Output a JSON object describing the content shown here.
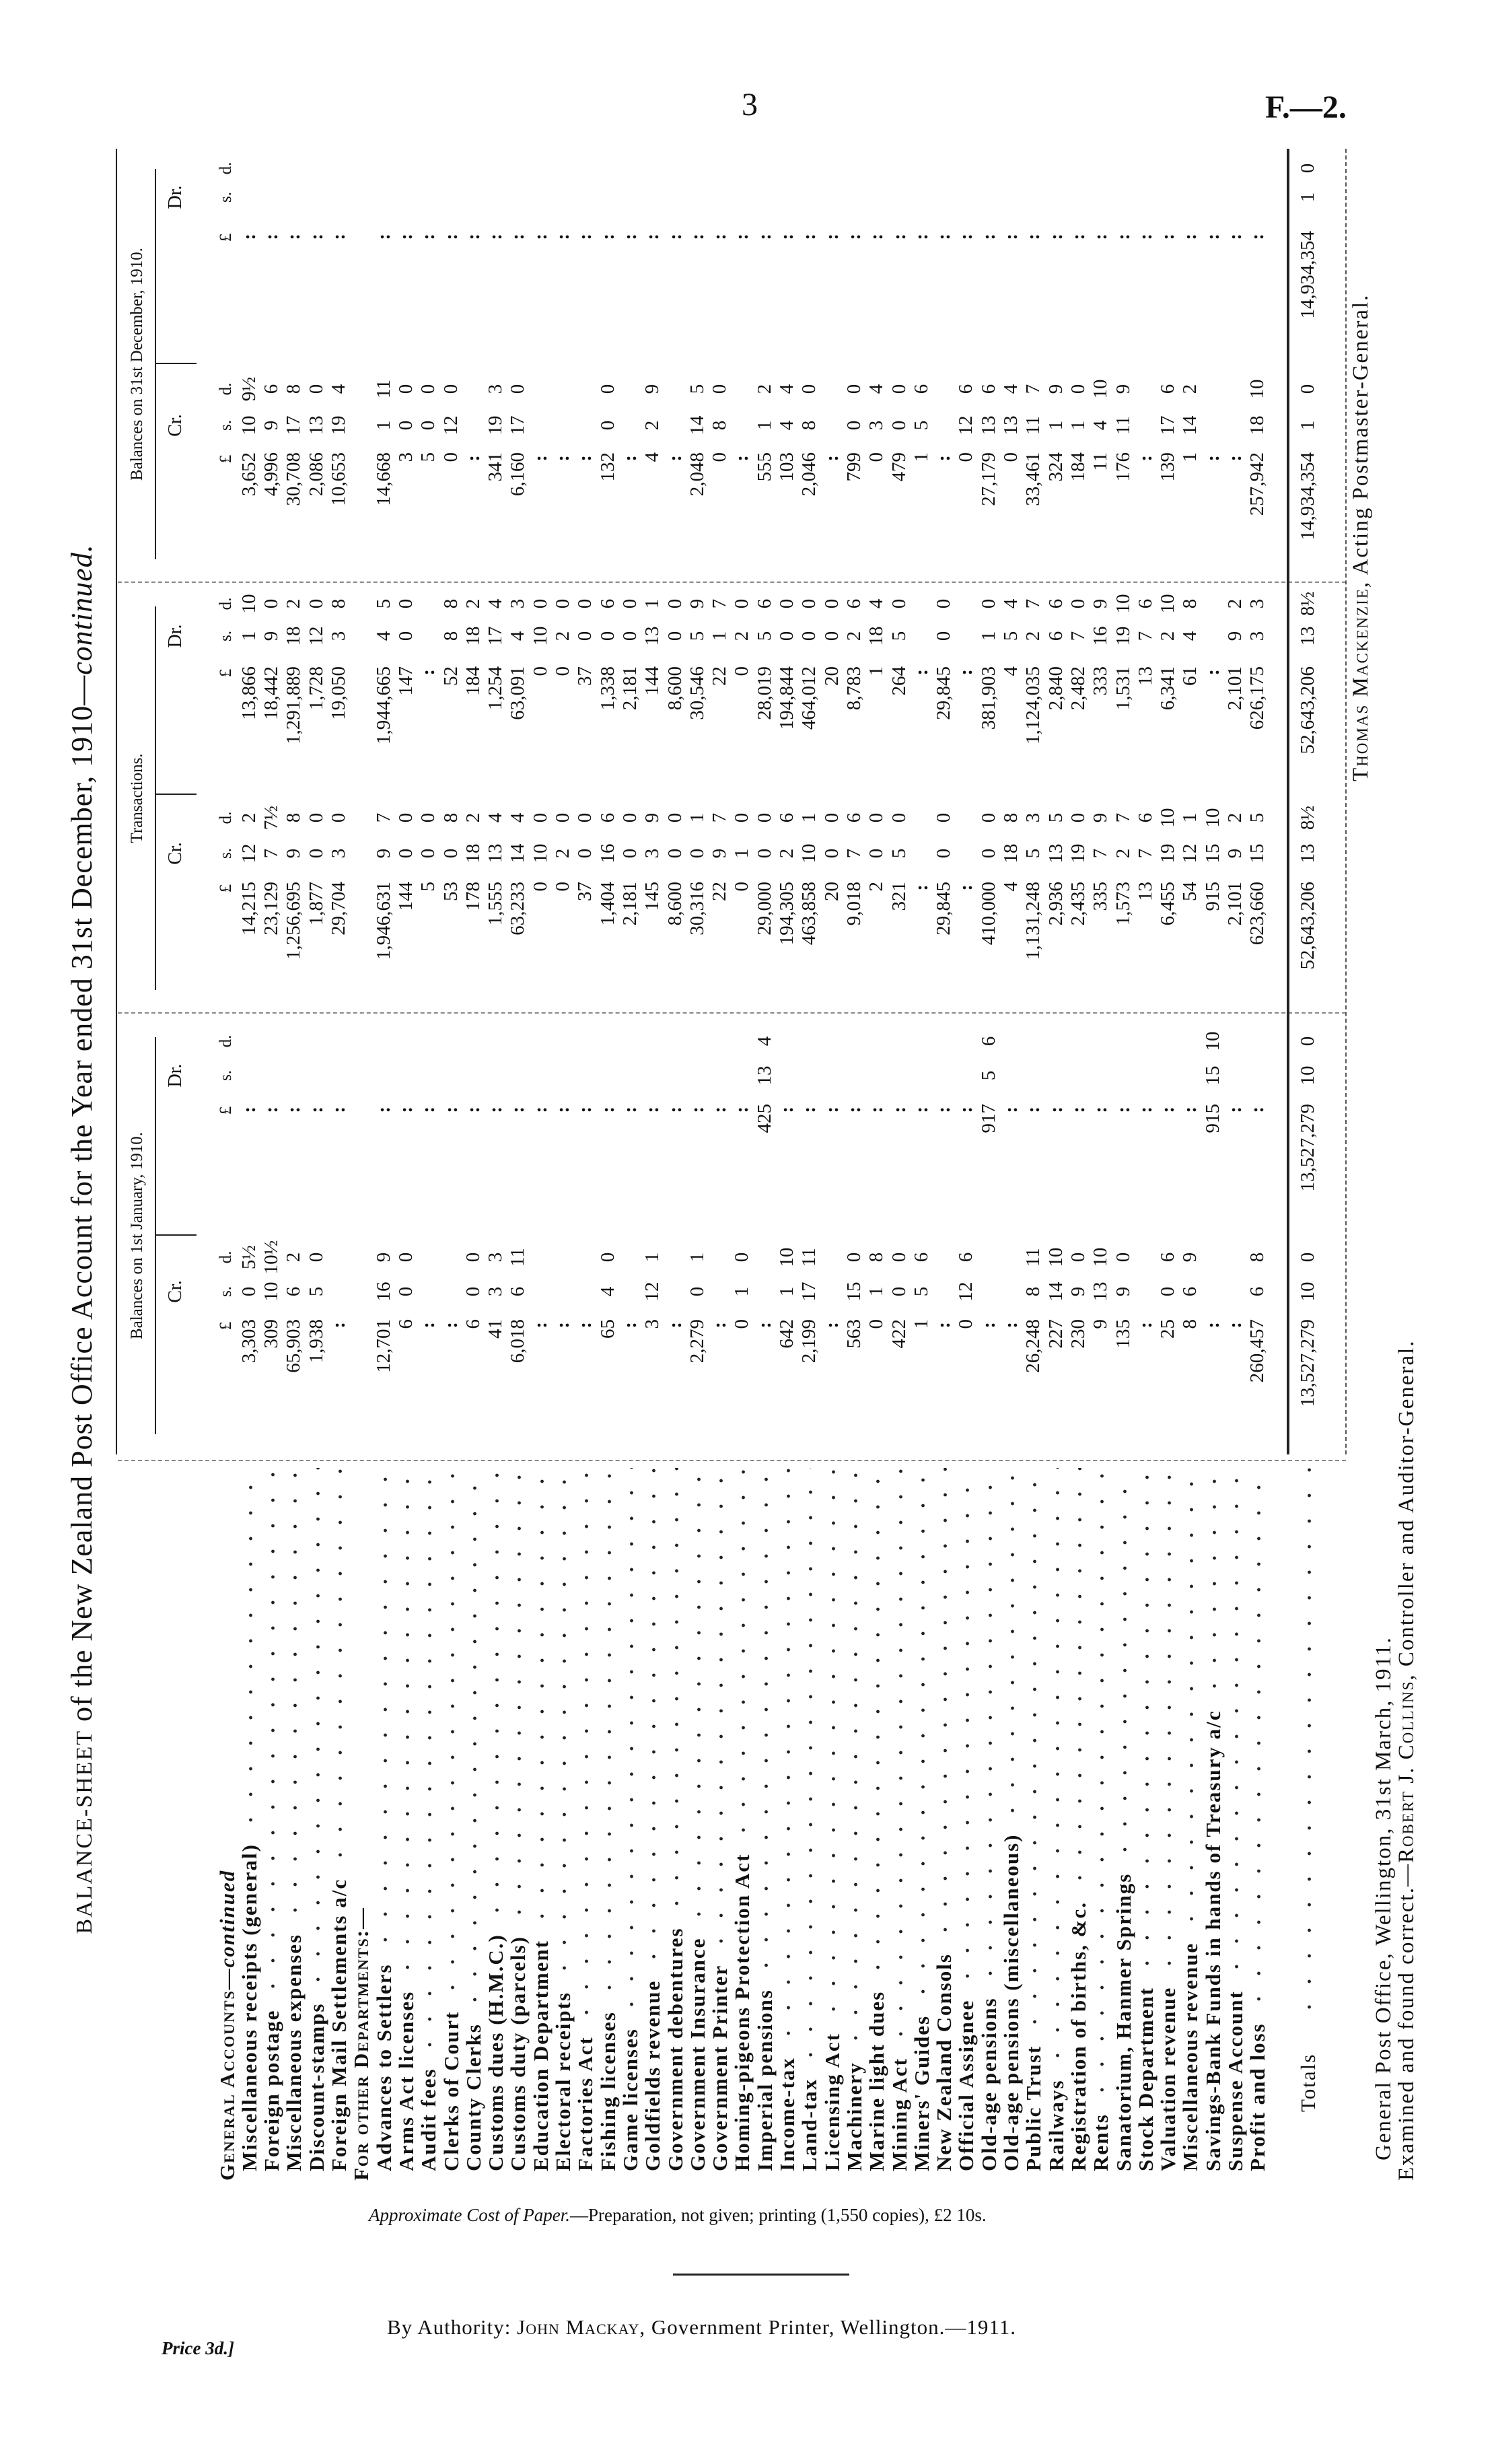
{
  "page": {
    "number": "3",
    "series": "F.—2."
  },
  "title": {
    "prefix": "BALANCE-SHEET",
    "main": " of the New Zealand Post Office Account for the Year ended 31st December, 1910—",
    "suffix": "continued."
  },
  "headers": {
    "groups": [
      "Balances on 1st January, 1910.",
      "Transactions.",
      "Balances on 31st December, 1910."
    ],
    "sides": [
      "Cr.",
      "Dr.",
      "Cr.",
      "Dr.",
      "Cr.",
      "Dr."
    ],
    "units": [
      "£",
      "s.",
      "d."
    ]
  },
  "rows": [
    {
      "type": "section",
      "label": "General Accounts—",
      "label_italic": "continued",
      "cells": []
    },
    {
      "type": "item",
      "label": "Miscellaneous receipts (general)",
      "cells": [
        [
          "3,303",
          "0",
          "5½"
        ],
        ":",
        [
          "14,215",
          "12",
          "2"
        ],
        [
          "13,866",
          "1",
          "10"
        ],
        [
          "3,652",
          "10",
          "9½"
        ],
        ":"
      ]
    },
    {
      "type": "item",
      "label": "Foreign postage",
      "cells": [
        [
          "309",
          "10",
          "10½"
        ],
        ":",
        [
          "23,129",
          "7",
          "7½"
        ],
        [
          "18,442",
          "9",
          "0"
        ],
        [
          "4,996",
          "9",
          "6"
        ],
        ":"
      ]
    },
    {
      "type": "item",
      "label": "Miscellaneous expenses",
      "cells": [
        [
          "65,903",
          "6",
          "2"
        ],
        ":",
        [
          "1,256,695",
          "9",
          "8"
        ],
        [
          "1,291,889",
          "18",
          "2"
        ],
        [
          "30,708",
          "17",
          "8"
        ],
        ":"
      ]
    },
    {
      "type": "item",
      "label": "Discount-stamps",
      "cells": [
        [
          "1,938",
          "5",
          "0"
        ],
        ":",
        [
          "1,877",
          "0",
          "0"
        ],
        [
          "1,728",
          "12",
          "0"
        ],
        [
          "2,086",
          "13",
          "0"
        ],
        ":"
      ]
    },
    {
      "type": "item",
      "label": "Foreign Mail Settlements a/c",
      "cells": [
        ":",
        ":",
        [
          "29,704",
          "3",
          "0"
        ],
        [
          "19,050",
          "3",
          "8"
        ],
        [
          "10,653",
          "19",
          "4"
        ],
        ":"
      ]
    },
    {
      "type": "section",
      "label": "For other Departments:—",
      "label_italic": "",
      "cells": []
    },
    {
      "type": "item",
      "label": "Advances to Settlers",
      "cells": [
        [
          "12,701",
          "16",
          "9"
        ],
        ":",
        [
          "1,946,631",
          "9",
          "7"
        ],
        [
          "1,944,665",
          "4",
          "5"
        ],
        [
          "14,668",
          "1",
          "11"
        ],
        ":"
      ]
    },
    {
      "type": "item",
      "label": "Arms Act licenses",
      "cells": [
        [
          "6",
          "0",
          "0"
        ],
        ":",
        [
          "144",
          "0",
          "0"
        ],
        [
          "147",
          "0",
          "0"
        ],
        [
          "3",
          "0",
          "0"
        ],
        ":"
      ]
    },
    {
      "type": "item",
      "label": "Audit fees",
      "cells": [
        ":",
        ":",
        [
          "5",
          "0",
          "0"
        ],
        ":",
        [
          "5",
          "0",
          "0"
        ],
        ":"
      ]
    },
    {
      "type": "item",
      "label": "Clerks of Court",
      "cells": [
        ":",
        ":",
        [
          "53",
          "0",
          "8"
        ],
        [
          "52",
          "8",
          "8"
        ],
        [
          "0",
          "12",
          "0"
        ],
        ":"
      ]
    },
    {
      "type": "item",
      "label": "County Clerks",
      "cells": [
        [
          "6",
          "0",
          "0"
        ],
        ":",
        [
          "178",
          "18",
          "2"
        ],
        [
          "184",
          "18",
          "2"
        ],
        ":",
        ":"
      ]
    },
    {
      "type": "item",
      "label": "Customs dues (H.M.C.)",
      "cells": [
        [
          "41",
          "3",
          "3"
        ],
        ":",
        [
          "1,555",
          "13",
          "4"
        ],
        [
          "1,254",
          "17",
          "4"
        ],
        [
          "341",
          "19",
          "3"
        ],
        ":"
      ]
    },
    {
      "type": "item",
      "label": "Customs duty (parcels)",
      "cells": [
        [
          "6,018",
          "6",
          "11"
        ],
        ":",
        [
          "63,233",
          "14",
          "4"
        ],
        [
          "63,091",
          "4",
          "3"
        ],
        [
          "6,160",
          "17",
          "0"
        ],
        ":"
      ]
    },
    {
      "type": "item",
      "label": "Education Department",
      "cells": [
        ":",
        ":",
        [
          "0",
          "10",
          "0"
        ],
        [
          "0",
          "10",
          "0"
        ],
        ":",
        ":"
      ]
    },
    {
      "type": "item",
      "label": "Electoral receipts",
      "cells": [
        ":",
        ":",
        [
          "0",
          "2",
          "0"
        ],
        [
          "0",
          "2",
          "0"
        ],
        ":",
        ":"
      ]
    },
    {
      "type": "item",
      "label": "Factories Act",
      "cells": [
        ":",
        ":",
        [
          "37",
          "0",
          "0"
        ],
        [
          "37",
          "0",
          "0"
        ],
        ":",
        ":"
      ]
    },
    {
      "type": "item",
      "label": "Fishing licenses",
      "cells": [
        [
          "65",
          "4",
          "0"
        ],
        ":",
        [
          "1,404",
          "16",
          "6"
        ],
        [
          "1,338",
          "0",
          "6"
        ],
        [
          "132",
          "0",
          "0"
        ],
        ":"
      ]
    },
    {
      "type": "item",
      "label": "Game licenses",
      "cells": [
        ":",
        ":",
        [
          "2,181",
          "0",
          "0"
        ],
        [
          "2,181",
          "0",
          "0"
        ],
        ":",
        ":"
      ]
    },
    {
      "type": "item",
      "label": "Goldfields revenue",
      "cells": [
        [
          "3",
          "12",
          "1"
        ],
        ":",
        [
          "145",
          "3",
          "9"
        ],
        [
          "144",
          "13",
          "1"
        ],
        [
          "4",
          "2",
          "9"
        ],
        ":"
      ]
    },
    {
      "type": "item",
      "label": "Government debentures",
      "cells": [
        ":",
        ":",
        [
          "8,600",
          "0",
          "0"
        ],
        [
          "8,600",
          "0",
          "0"
        ],
        ":",
        ":"
      ]
    },
    {
      "type": "item",
      "label": "Government Insurance",
      "cells": [
        [
          "2,279",
          "0",
          "1"
        ],
        ":",
        [
          "30,316",
          "0",
          "1"
        ],
        [
          "30,546",
          "5",
          "9"
        ],
        [
          "2,048",
          "14",
          "5"
        ],
        ":"
      ]
    },
    {
      "type": "item",
      "label": "Government Printer",
      "cells": [
        ":",
        ":",
        [
          "22",
          "9",
          "7"
        ],
        [
          "22",
          "1",
          "7"
        ],
        [
          "0",
          "8",
          "0"
        ],
        ":"
      ]
    },
    {
      "type": "item",
      "label": "Homing-pigeons Protection Act",
      "cells": [
        [
          "0",
          "1",
          "0"
        ],
        ":",
        [
          "0",
          "1",
          "0"
        ],
        [
          "0",
          "2",
          "0"
        ],
        ":",
        ":"
      ]
    },
    {
      "type": "item",
      "label": "Imperial pensions",
      "cells": [
        ":",
        [
          "425",
          "13",
          "4"
        ],
        [
          "29,000",
          "0",
          "0"
        ],
        [
          "28,019",
          "5",
          "6"
        ],
        [
          "555",
          "1",
          "2"
        ],
        ":"
      ]
    },
    {
      "type": "item",
      "label": "Income-tax",
      "cells": [
        [
          "642",
          "1",
          "10"
        ],
        ":",
        [
          "194,305",
          "2",
          "6"
        ],
        [
          "194,844",
          "0",
          "0"
        ],
        [
          "103",
          "4",
          "4"
        ],
        ":"
      ]
    },
    {
      "type": "item",
      "label": "Land-tax",
      "cells": [
        [
          "2,199",
          "17",
          "11"
        ],
        ":",
        [
          "463,858",
          "10",
          "1"
        ],
        [
          "464,012",
          "0",
          "0"
        ],
        [
          "2,046",
          "8",
          "0"
        ],
        ":"
      ]
    },
    {
      "type": "item",
      "label": "Licensing Act",
      "cells": [
        ":",
        ":",
        [
          "20",
          "0",
          "0"
        ],
        [
          "20",
          "0",
          "0"
        ],
        ":",
        ":"
      ]
    },
    {
      "type": "item",
      "label": "Machinery",
      "cells": [
        [
          "563",
          "15",
          "0"
        ],
        ":",
        [
          "9,018",
          "7",
          "6"
        ],
        [
          "8,783",
          "2",
          "6"
        ],
        [
          "799",
          "0",
          "0"
        ],
        ":"
      ]
    },
    {
      "type": "item",
      "label": "Marine light dues",
      "cells": [
        [
          "0",
          "1",
          "8"
        ],
        ":",
        [
          "2",
          "0",
          "0"
        ],
        [
          "1",
          "18",
          "4"
        ],
        [
          "0",
          "3",
          "4"
        ],
        ":"
      ]
    },
    {
      "type": "item",
      "label": "Mining Act",
      "cells": [
        [
          "422",
          "0",
          "0"
        ],
        ":",
        [
          "321",
          "5",
          "0"
        ],
        [
          "264",
          "5",
          "0"
        ],
        [
          "479",
          "0",
          "0"
        ],
        ":"
      ]
    },
    {
      "type": "item",
      "label": "Miners' Guides",
      "cells": [
        [
          "1",
          "5",
          "6"
        ],
        ":",
        ":",
        ":",
        [
          "1",
          "5",
          "6"
        ],
        ":"
      ]
    },
    {
      "type": "item",
      "label": "New Zealand Consols",
      "cells": [
        ":",
        ":",
        [
          "29,845",
          "0",
          "0"
        ],
        [
          "29,845",
          "0",
          "0"
        ],
        ":",
        ":"
      ]
    },
    {
      "type": "item",
      "label": "Official Assignee",
      "cells": [
        [
          "0",
          "12",
          "6"
        ],
        ":",
        ":",
        ":",
        [
          "0",
          "12",
          "6"
        ],
        ":"
      ]
    },
    {
      "type": "item",
      "label": "Old-age pensions",
      "cells": [
        ":",
        [
          "917",
          "5",
          "6"
        ],
        [
          "410,000",
          "0",
          "0"
        ],
        [
          "381,903",
          "1",
          "0"
        ],
        [
          "27,179",
          "13",
          "6"
        ],
        ":"
      ]
    },
    {
      "type": "item",
      "label": "Old-age pensions (miscellaneous)",
      "cells": [
        ":",
        ":",
        [
          "4",
          "18",
          "8"
        ],
        [
          "4",
          "5",
          "4"
        ],
        [
          "0",
          "13",
          "4"
        ],
        ":"
      ]
    },
    {
      "type": "item",
      "label": "Public Trust",
      "cells": [
        [
          "26,248",
          "8",
          "11"
        ],
        ":",
        [
          "1,131,248",
          "5",
          "3"
        ],
        [
          "1,124,035",
          "2",
          "7"
        ],
        [
          "33,461",
          "11",
          "7"
        ],
        ":"
      ]
    },
    {
      "type": "item",
      "label": "Railways",
      "cells": [
        [
          "227",
          "14",
          "10"
        ],
        ":",
        [
          "2,936",
          "13",
          "5"
        ],
        [
          "2,840",
          "6",
          "6"
        ],
        [
          "324",
          "1",
          "9"
        ],
        ":"
      ]
    },
    {
      "type": "item",
      "label": "Registration of births, &c.",
      "cells": [
        [
          "230",
          "9",
          "0"
        ],
        ":",
        [
          "2,435",
          "19",
          "0"
        ],
        [
          "2,482",
          "7",
          "0"
        ],
        [
          "184",
          "1",
          "0"
        ],
        ":"
      ]
    },
    {
      "type": "item",
      "label": "Rents",
      "cells": [
        [
          "9",
          "13",
          "10"
        ],
        ":",
        [
          "335",
          "7",
          "9"
        ],
        [
          "333",
          "16",
          "9"
        ],
        [
          "11",
          "4",
          "10"
        ],
        ":"
      ]
    },
    {
      "type": "item",
      "label": "Sanatorium, Hanmer Springs",
      "cells": [
        [
          "135",
          "9",
          "0"
        ],
        ":",
        [
          "1,573",
          "2",
          "7"
        ],
        [
          "1,531",
          "19",
          "10"
        ],
        [
          "176",
          "11",
          "9"
        ],
        ":"
      ]
    },
    {
      "type": "item",
      "label": "Stock Department",
      "cells": [
        ":",
        ":",
        [
          "13",
          "7",
          "6"
        ],
        [
          "13",
          "7",
          "6"
        ],
        ":",
        ":"
      ]
    },
    {
      "type": "item",
      "label": "Valuation revenue",
      "cells": [
        [
          "25",
          "0",
          "6"
        ],
        ":",
        [
          "6,455",
          "19",
          "10"
        ],
        [
          "6,341",
          "2",
          "10"
        ],
        [
          "139",
          "17",
          "6"
        ],
        ":"
      ]
    },
    {
      "type": "item",
      "label": "Miscellaneous revenue",
      "cells": [
        [
          "8",
          "6",
          "9"
        ],
        ":",
        [
          "54",
          "12",
          "1"
        ],
        [
          "61",
          "4",
          "8"
        ],
        [
          "1",
          "14",
          "2"
        ],
        ":"
      ]
    },
    {
      "type": "item",
      "label": "Savings-Bank Funds in hands of Treasury a/c",
      "cells": [
        ":",
        [
          "915",
          "15",
          "10"
        ],
        [
          "915",
          "15",
          "10"
        ],
        ":",
        ":",
        ":"
      ]
    },
    {
      "type": "item",
      "label": "Suspense Account",
      "cells": [
        ":",
        ":",
        [
          "2,101",
          "9",
          "2"
        ],
        [
          "2,101",
          "9",
          "2"
        ],
        ":",
        ":"
      ]
    },
    {
      "type": "item",
      "label": "Profit and loss",
      "cells": [
        [
          "260,457",
          "6",
          "8"
        ],
        ":",
        [
          "623,660",
          "15",
          "5"
        ],
        [
          "626,175",
          "3",
          "3"
        ],
        [
          "257,942",
          "18",
          "10"
        ],
        ":"
      ]
    }
  ],
  "totals": {
    "label": "Totals",
    "cells": [
      [
        "13,527,279",
        "10",
        "0"
      ],
      [
        "13,527,279",
        "10",
        "0"
      ],
      [
        "52,643,206",
        "13",
        "8½"
      ],
      [
        "52,643,206",
        "13",
        "8½"
      ],
      [
        "14,934,354",
        "1",
        "0"
      ],
      [
        "14,934,354",
        "1",
        "0"
      ]
    ]
  },
  "signatures": {
    "postmaster_name": "Thomas Mackenzie",
    "postmaster_title": ", Acting Postmaster-General.",
    "place_date": "General Post Office, Wellington, 31st March, 1911.",
    "audit_prefix": "Examined and found correct.—",
    "auditor_name": "Robert J. Collins",
    "auditor_title": ", Controller and Auditor-General."
  },
  "footer": {
    "cost_italic": "Approximate Cost of Paper.",
    "cost_text": "—Preparation, not given; printing (1,550 copies), £2 10s.",
    "authority_prefix": "By Authority: ",
    "printer_name": "John Mackay",
    "authority_suffix": ", Government Printer, Wellington.—1911.",
    "price": "Price 3d.]"
  }
}
